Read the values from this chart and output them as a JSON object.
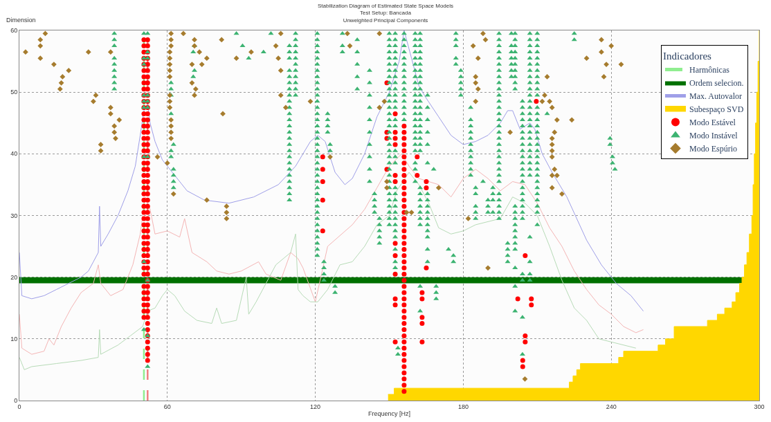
{
  "chart_data": {
    "type": "scatter",
    "title": "Stabilization Diagram of Estimated State Space Models\nTest Setup: Bancada\nUnweighted Principal Components",
    "xlabel": "Frequency [Hz]",
    "ylabel": "Dimension",
    "legend_title": "Indicadores",
    "xlim": [
      0,
      300
    ],
    "xticks": [
      0,
      60,
      120,
      180,
      240,
      300
    ],
    "ylim": [
      0,
      60
    ],
    "yticks": [
      0,
      10,
      20,
      30,
      40,
      50,
      60
    ],
    "grid": true,
    "legend": "top right",
    "ref_lines": [
      {
        "axis": "x",
        "value": 52,
        "label": null,
        "color": "#f08080",
        "line_style": "dashed"
      }
    ],
    "bands": [
      {
        "axis": "y",
        "from": 19,
        "to": 20,
        "label": "Ordem selecion.",
        "color": "#007000"
      }
    ],
    "series": [
      {
        "name": "Harmônicas",
        "type": "line",
        "color": "#90ee90",
        "marker": "none",
        "line_style": "dashed",
        "x": [
          50.5,
          50.5
        ],
        "values": [
          0,
          60
        ]
      },
      {
        "name": "Max. Autovalor",
        "type": "line",
        "color": "#9f9fe8",
        "marker": "none",
        "x": [
          0,
          1,
          5,
          10,
          15,
          20,
          25,
          28,
          30,
          32,
          32.5,
          33,
          36,
          40,
          44,
          47,
          49,
          50.5,
          52,
          53,
          55,
          58,
          62,
          68,
          75,
          85,
          95,
          105,
          112,
          118,
          121,
          124,
          128,
          132,
          135,
          140,
          145,
          150,
          154,
          156,
          158,
          162,
          165,
          170,
          175,
          180,
          185,
          190,
          195,
          198,
          200,
          203,
          207,
          209,
          212,
          216,
          222,
          230,
          236,
          242,
          248,
          253
        ],
        "values": [
          24,
          17,
          16.5,
          17,
          18,
          19,
          20,
          21,
          22.5,
          24,
          31.5,
          25,
          27,
          30,
          34,
          38,
          43,
          47,
          48,
          45,
          42,
          39,
          37,
          34,
          32.5,
          32,
          33,
          35,
          38,
          42,
          43,
          42,
          37,
          35,
          36,
          40,
          46,
          50,
          55,
          60,
          57,
          51,
          49,
          46,
          43,
          41.5,
          42,
          43,
          45,
          47,
          47,
          44,
          45,
          44,
          40,
          37,
          33,
          26,
          22,
          19,
          17,
          14.5
        ]
      },
      {
        "name": "Subespaço SVD",
        "type": "area",
        "color": "#ffd700",
        "x": [
          149.5,
          152,
          152,
          223,
          223,
          224.5,
          224.5,
          226,
          226,
          227.5,
          227.5,
          243,
          243,
          245,
          245,
          259,
          259,
          262,
          262,
          265.5,
          265.5,
          279,
          279,
          283,
          283,
          286,
          286,
          289,
          289,
          290.5,
          290.5,
          292,
          292,
          293,
          293,
          294,
          294,
          295,
          295,
          296,
          296,
          297,
          297,
          297.5,
          297.5,
          298,
          298,
          298.5,
          298.5,
          299,
          299,
          299.5,
          299.5,
          300,
          300
        ],
        "values": [
          1,
          1,
          2,
          2,
          3,
          3,
          4,
          4,
          5,
          5,
          6,
          6,
          7,
          7,
          8,
          8,
          9,
          9,
          10,
          10,
          12,
          12,
          13,
          13,
          14,
          14,
          15,
          15,
          16,
          16,
          17.5,
          17.5,
          19,
          19,
          20,
          20,
          22,
          22,
          24,
          24,
          27,
          27,
          30,
          30,
          35,
          35,
          40,
          40,
          45,
          45,
          50,
          50,
          55,
          55,
          60
        ]
      },
      {
        "name": "Modo Estável",
        "type": "scatter",
        "color": "#ff0000",
        "marker": "circle",
        "x": [
          50.5,
          50.5,
          50.5,
          50.5,
          50.5,
          50.5,
          50.5,
          50.5,
          50.5,
          50.5,
          50.5,
          50.5,
          50.5,
          50.5,
          50.5,
          50.5,
          50.5,
          50.5,
          50.5,
          50.5,
          50.5,
          50.5,
          50.5,
          50.5,
          50.5,
          50.5,
          50.5,
          50.5,
          50.5,
          50.5,
          50.5,
          50.5,
          50.5,
          50.5,
          50.5,
          50.5,
          50.5,
          50.5,
          50.5,
          50.5,
          50.5,
          50.5,
          50.5,
          50.5,
          50.5,
          52,
          52,
          52,
          52,
          52,
          52,
          52,
          52,
          52,
          52,
          52,
          52,
          52,
          52,
          52,
          52,
          52,
          52,
          52,
          52,
          52,
          52,
          52,
          52,
          52,
          52,
          52,
          52,
          52,
          52,
          52,
          52,
          52,
          52,
          52,
          52,
          52,
          52,
          52,
          52,
          52,
          52,
          52,
          52,
          52,
          52,
          52,
          52,
          52,
          52,
          52,
          52,
          52,
          156,
          156,
          156,
          156,
          156,
          156,
          156,
          156,
          156,
          156,
          156,
          156,
          156,
          156,
          156,
          156,
          156,
          156,
          156,
          156,
          156,
          156,
          156,
          156,
          156,
          156,
          156,
          156,
          156,
          156,
          156,
          156,
          156,
          156,
          156,
          156,
          156,
          156,
          156,
          156,
          156,
          156,
          156,
          156,
          152.4,
          152.4,
          152.4,
          152.4,
          152.4,
          152.4,
          152.4,
          152.4,
          152.4,
          152.4,
          152.4,
          152.4,
          149,
          149,
          149,
          149,
          123,
          123,
          123,
          123,
          123,
          161.3,
          161.3,
          165,
          165,
          165,
          163.3,
          163.3,
          163.3,
          163.3,
          163.3,
          209.6,
          205.1,
          205.1,
          205.1,
          202.1,
          207.6,
          207.6,
          204.1,
          204.1
        ],
        "values": [
          13.5,
          14.5,
          15.5,
          16.5,
          17.5,
          18.5,
          20.5,
          21.5,
          22.5,
          23.5,
          24.5,
          25.5,
          26.5,
          27.5,
          28.5,
          29.5,
          30.5,
          31.5,
          32.5,
          33.5,
          34.5,
          35.5,
          36.5,
          37.5,
          38.5,
          39.5,
          40.5,
          41.5,
          42.5,
          43.5,
          44.5,
          45.5,
          46.5,
          47.5,
          48.5,
          49.5,
          50.5,
          51.5,
          52.5,
          53.5,
          54.5,
          55.5,
          56.5,
          57.5,
          58.5,
          6.5,
          7.5,
          8.5,
          9.5,
          10.5,
          11.5,
          12.5,
          13.5,
          14.5,
          15.5,
          16.5,
          17.5,
          18.5,
          19.5,
          20.5,
          21.5,
          22.5,
          23.5,
          24.5,
          25.5,
          26.5,
          27.5,
          28.5,
          29.5,
          30.5,
          31.5,
          32.5,
          33.5,
          34.5,
          35.5,
          36.5,
          37.5,
          38.5,
          39.5,
          40.5,
          41.5,
          42.5,
          43.5,
          44.5,
          45.5,
          46.5,
          47.5,
          48.5,
          49.5,
          50.5,
          51.5,
          52.5,
          53.5,
          54.5,
          55.5,
          56.5,
          57.5,
          58.5,
          1.5,
          2.5,
          3.5,
          4.5,
          5.5,
          6.5,
          7.5,
          8.5,
          9.5,
          10.5,
          11.5,
          12.5,
          13.5,
          14.5,
          15.5,
          16.5,
          17.5,
          18.5,
          19.5,
          20.5,
          21.5,
          22.5,
          23.5,
          24.5,
          25.5,
          26.5,
          27.5,
          28.5,
          29.5,
          30.5,
          31.5,
          32.5,
          33.5,
          34.5,
          35.5,
          36.5,
          37.5,
          38.5,
          39.5,
          40.5,
          41.5,
          42.5,
          43.5,
          44.5,
          46.5,
          43.5,
          42.5,
          41.5,
          36.5,
          35.5,
          25.5,
          23.5,
          20.5,
          16.5,
          15.5,
          9.5,
          51.5,
          43.5,
          42.5,
          37.5,
          39.5,
          37.5,
          35.5,
          32.5,
          27.5,
          39.5,
          36.5,
          35.5,
          34.5,
          21.5,
          17.5,
          16.5,
          13.5,
          12.5,
          9.5,
          48.5,
          23.5,
          10.5,
          9.5,
          16.5,
          16.5,
          15.5,
          6.5,
          5.5
        ]
      },
      {
        "name": "Modo Instável",
        "type": "scatter",
        "color": "#3cb371",
        "marker": "triangle",
        "x": [
          38.5,
          38.5,
          38.5,
          38.5,
          38.5,
          38.5,
          38.5,
          38.5,
          38.5,
          50.5,
          50.5,
          50.5,
          50.5,
          50.5,
          50.5,
          50.5,
          50.5,
          50.5,
          52,
          52,
          52,
          52,
          52,
          52,
          52,
          52,
          52,
          52,
          61.5,
          61.5,
          61.5,
          61.5,
          61.5,
          61.5,
          62.5,
          62.5,
          62.5,
          62.5,
          62.5,
          70.5,
          70.5,
          71,
          71,
          88,
          90.5,
          93,
          99,
          102,
          109.5,
          109.5,
          109.5,
          109.5,
          109.5,
          109.5,
          109.5,
          109.5,
          109.5,
          109.5,
          109.5,
          109.5,
          109.5,
          109.5,
          109.5,
          109.5,
          109.5,
          109.5,
          109.5,
          109.5,
          109.5,
          109.5,
          109.5,
          109.5,
          109.5,
          112,
          112,
          112,
          112,
          112,
          112,
          112,
          112,
          112,
          112,
          112,
          120.8,
          120.8,
          120.8,
          120.8,
          120.8,
          120.8,
          120.8,
          120.8,
          120.8,
          120.8,
          120.8,
          120.8,
          120.8,
          120.8,
          120.8,
          120.8,
          120.8,
          120.8,
          120.8,
          120.8,
          120.8,
          120.8,
          120.8,
          120.8,
          120.8,
          120.8,
          120.8,
          120.8,
          120.8,
          120.8,
          120.8,
          120.8,
          120.8,
          120.8,
          120.8,
          120.8,
          120.8,
          123.5,
          123.5,
          123.5,
          123.5,
          125,
          125,
          125,
          125,
          126,
          126,
          128,
          128,
          131,
          131,
          131,
          137,
          137,
          137,
          137,
          137,
          142,
          142,
          142,
          142,
          142,
          142,
          142,
          142,
          142,
          142,
          144,
          144,
          144,
          144,
          146,
          146,
          146,
          146,
          146,
          150,
          150,
          150,
          150,
          150,
          150,
          150,
          150,
          150,
          150,
          150,
          150,
          150,
          150,
          150,
          150,
          150,
          150,
          150,
          150,
          150,
          150,
          150,
          150,
          150,
          150,
          150,
          150,
          150,
          150,
          150,
          150,
          152.4,
          152.4,
          152.4,
          152.4,
          152.4,
          152.4,
          152.4,
          152.4,
          152.4,
          152.4,
          152.4,
          152.4,
          152.4,
          152.4,
          152.4,
          152.4,
          152.4,
          152.4,
          152.4,
          152.4,
          152.4,
          152.4,
          152.4,
          152.4,
          152.4,
          152.4,
          152.4,
          152.4,
          152.4,
          152.4,
          153.5,
          153.5,
          156,
          156,
          156,
          156,
          156,
          156,
          156,
          156,
          156,
          156,
          156,
          156,
          156,
          156,
          156,
          160.5,
          160.5,
          160.5,
          160.5,
          160.5,
          160.5,
          160.5,
          160.5,
          160.5,
          160.5,
          160.5,
          160.5,
          160.5,
          160.5,
          160.5,
          160.5,
          160.5,
          160.5,
          160.5,
          160.5,
          160.5,
          160.5,
          160.5,
          162.5,
          162.5,
          162.5,
          162.5,
          162.5,
          162.5,
          162.5,
          162.5,
          162.5,
          162.5,
          162.5,
          162.5,
          162.5,
          162.5,
          162.5,
          162.5,
          162.5,
          162.5,
          162.5,
          162.5,
          162.5,
          162.5,
          162.5,
          162.5,
          162.5,
          162.5,
          162.5,
          162.5,
          162.5,
          165.5,
          165.5,
          165.5,
          165.5,
          165.5,
          165.5,
          165.5,
          165.5,
          165.5,
          165.5,
          165.5,
          165.5,
          165.5,
          165.5,
          165.5,
          165.5,
          169,
          169,
          169,
          168,
          174,
          176,
          176,
          177,
          177,
          177,
          177,
          177,
          179,
          179,
          179,
          179,
          179,
          183,
          183,
          183,
          183,
          183,
          183,
          183,
          183,
          183,
          183,
          183,
          185,
          185,
          185,
          185,
          185,
          188,
          190,
          190,
          190,
          192,
          192,
          192,
          192,
          194.5,
          194.5,
          194.5,
          194.5,
          194.5,
          194.5,
          194.5,
          194.5,
          194.5,
          194.5,
          194.5,
          194.5,
          194.5,
          194.5,
          194.5,
          194.5,
          194.5,
          194.5,
          194.5,
          194.5,
          194.5,
          194.5,
          194.5,
          194.5,
          194.5,
          194.5,
          194.5,
          194.5,
          194.5,
          194.5,
          198,
          198,
          198,
          198,
          199.5,
          199.5,
          199.5,
          199.5,
          199.5,
          199.5,
          199.5,
          201,
          201,
          201,
          201,
          201,
          201,
          201,
          201,
          201,
          201,
          201,
          201,
          201,
          201,
          201,
          201,
          201,
          201,
          201,
          201,
          201,
          204,
          204,
          204,
          204,
          204,
          204,
          204,
          204,
          204,
          204,
          204,
          204,
          204,
          204,
          204,
          204,
          204,
          204,
          204,
          204,
          204,
          204,
          204,
          204,
          207,
          207,
          207,
          207,
          207,
          207,
          207,
          207,
          207,
          207,
          207,
          207,
          207,
          207,
          207,
          207,
          207,
          207,
          207,
          207,
          207,
          207,
          207,
          207,
          207,
          207,
          207,
          207,
          210,
          210,
          210,
          210,
          210,
          210,
          210,
          210,
          210,
          210,
          210,
          210,
          210,
          210,
          210,
          210,
          210,
          210,
          210,
          210,
          210,
          210,
          210,
          210,
          210,
          210,
          210,
          210,
          210,
          210,
          214,
          225,
          225,
          239.5,
          239.5,
          240.5,
          240.5,
          241.5
        ],
        "values": [
          59.5,
          58.5,
          57.5,
          55.5,
          54.5,
          53.5,
          52.5,
          51.5,
          50.5,
          59.5,
          55.5,
          54.5,
          49.5,
          48.5,
          47.5,
          39.5,
          22.5,
          11.5,
          59.5,
          56.5,
          55.5,
          49.5,
          48.5,
          47.5,
          39.5,
          19.5,
          10.5,
          5.5,
          51.5,
          50.5,
          49.5,
          46.5,
          40.5,
          39.5,
          41.5,
          37.5,
          36.5,
          35.5,
          34.5,
          56.5,
          52.5,
          57.5,
          53.5,
          59.5,
          57.5,
          55.5,
          56.5,
          59.5,
          57.5,
          56.5,
          55.5,
          53.5,
          52.5,
          51.5,
          50.5,
          49.5,
          48.5,
          47.5,
          46.5,
          45.5,
          44.5,
          43.5,
          42.5,
          41.5,
          40.5,
          39.5,
          38.5,
          37.5,
          36.5,
          35.5,
          34.5,
          33.5,
          32.5,
          59.5,
          58.5,
          57.5,
          56.5,
          55.5,
          54.5,
          53.5,
          52.5,
          51.5,
          50.5,
          49.5,
          59.5,
          58.5,
          57.5,
          56.5,
          55.5,
          54.5,
          53.5,
          52.5,
          51.5,
          50.5,
          49.5,
          48.5,
          47.5,
          46.5,
          45.5,
          44.5,
          43.5,
          42.5,
          41.5,
          40.5,
          39.5,
          38.5,
          37.5,
          36.5,
          35.5,
          34.5,
          33.5,
          32.5,
          31.5,
          30.5,
          29.5,
          28.5,
          27.5,
          26.5,
          25.5,
          24.5,
          23.5,
          22.5,
          21.5,
          20.5,
          19.5,
          46.5,
          45.5,
          44.5,
          43.5,
          41.5,
          40.5,
          18.5,
          17.5,
          59.5,
          57.5,
          56.5,
          58.5,
          56.5,
          54.5,
          52.5,
          50.5,
          53.5,
          51.5,
          49.5,
          47.5,
          45.5,
          43.5,
          41.5,
          39.5,
          37.5,
          35.5,
          33.5,
          32.5,
          31.5,
          30.5,
          29.5,
          28.5,
          27.5,
          26.5,
          25.5,
          59.5,
          58.5,
          57.5,
          56.5,
          55.5,
          54.5,
          53.5,
          52.5,
          51.5,
          50.5,
          49.5,
          48.5,
          47.5,
          46.5,
          45.5,
          44.5,
          43.5,
          42.5,
          41.5,
          40.5,
          39.5,
          38.5,
          37.5,
          36.5,
          35.5,
          34.5,
          33.5,
          32.5,
          31.5,
          30.5,
          29.5,
          28.5,
          59.5,
          58.5,
          57.5,
          56.5,
          55.5,
          54.5,
          53.5,
          52.5,
          51.5,
          50.5,
          49.5,
          48.5,
          47.5,
          45.5,
          44.5,
          40.5,
          39.5,
          38.5,
          34.5,
          33.5,
          32.5,
          31.5,
          30.5,
          29.5,
          28.5,
          27.5,
          26.5,
          24.5,
          22.5,
          21.5,
          8.5,
          7.5,
          59.5,
          58.5,
          57.5,
          56.5,
          55.5,
          54.5,
          53.5,
          52.5,
          51.5,
          50.5,
          49.5,
          48.5,
          47.5,
          46.5,
          45.5,
          59.5,
          58.5,
          57.5,
          56.5,
          55.5,
          54.5,
          53.5,
          52.5,
          51.5,
          50.5,
          49.5,
          48.5,
          47.5,
          46.5,
          45.5,
          44.5,
          43.5,
          42.5,
          41.5,
          40.5,
          38.5,
          37.5,
          35.5,
          59.5,
          58.5,
          57.5,
          56.5,
          55.5,
          54.5,
          53.5,
          52.5,
          51.5,
          50.5,
          49.5,
          48.5,
          47.5,
          46.5,
          45.5,
          44.5,
          43.5,
          42.5,
          41.5,
          40.5,
          34.5,
          33.5,
          32.5,
          31.5,
          30.5,
          29.5,
          28.5,
          18.5,
          14.5,
          49.5,
          47.5,
          45.5,
          43.5,
          41.5,
          38.5,
          33.5,
          32.5,
          31.5,
          30.5,
          29.5,
          28.5,
          27.5,
          26.5,
          24.5,
          22.5,
          18.5,
          17.5,
          16.5,
          37.5,
          24.5,
          23.5,
          22.5,
          59.5,
          58.5,
          57.5,
          55.5,
          54.5,
          53.5,
          52.5,
          51.5,
          50.5,
          49.5,
          47.5,
          45.5,
          44.5,
          43.5,
          42.5,
          41.5,
          40.5,
          39.5,
          38.5,
          37.5,
          36.5,
          34.5,
          33.5,
          31.5,
          30.5,
          29.5,
          35.5,
          32.5,
          31.5,
          30.5,
          34.5,
          33.5,
          32.5,
          30.5,
          59.5,
          58.5,
          57.5,
          56.5,
          55.5,
          54.5,
          53.5,
          52.5,
          51.5,
          50.5,
          49.5,
          48.5,
          47.5,
          46.5,
          45.5,
          44.5,
          43.5,
          42.5,
          41.5,
          40.5,
          39.5,
          38.5,
          37.5,
          36.5,
          35.5,
          33.5,
          32.5,
          31.5,
          30.5,
          29.5,
          25.5,
          24.5,
          23.5,
          22.5,
          59.5,
          57.5,
          56.5,
          55.5,
          54.5,
          53.5,
          52.5,
          59.5,
          58.5,
          57.5,
          56.5,
          55.5,
          54.5,
          53.5,
          52.5,
          51.5,
          50.5,
          31.5,
          30.5,
          29.5,
          28.5,
          27.5,
          26.5,
          25.5,
          24.5,
          21.5,
          18.5,
          14.5,
          48.5,
          47.5,
          46.5,
          45.5,
          44.5,
          43.5,
          42.5,
          41.5,
          40.5,
          39.5,
          38.5,
          37.5,
          36.5,
          35.5,
          34.5,
          33.5,
          32.5,
          31.5,
          30.5,
          29.5,
          20.5,
          19.5,
          13.5,
          7.5,
          59.5,
          58.5,
          57.5,
          56.5,
          55.5,
          54.5,
          53.5,
          52.5,
          51.5,
          50.5,
          49.5,
          48.5,
          47.5,
          46.5,
          45.5,
          44.5,
          43.5,
          42.5,
          41.5,
          40.5,
          39.5,
          38.5,
          37.5,
          36.5,
          26.5,
          22.5,
          20.5,
          19.5,
          59.5,
          58.5,
          57.5,
          56.5,
          55.5,
          54.5,
          53.5,
          52.5,
          51.5,
          50.5,
          49.5,
          47.5,
          46.5,
          45.5,
          44.5,
          43.5,
          42.5,
          41.5,
          40.5,
          39.5,
          38.5,
          37.5,
          36.5,
          35.5,
          34.5,
          33.5,
          32.5,
          31.5,
          30.5,
          28.5,
          46.5,
          59.5,
          58.5,
          42.5,
          41.5,
          39.5,
          38.5,
          37.5
        ]
      },
      {
        "name": "Modo Espúrio",
        "type": "scatter",
        "color": "#a67c2e",
        "marker": "diamond",
        "x": [
          2.5,
          8.5,
          8.5,
          8.5,
          10.5,
          14,
          17.5,
          17,
          16.5,
          20,
          28,
          31,
          30,
          33,
          33,
          37,
          37,
          37,
          38.5,
          38.5,
          39,
          40.5,
          56,
          60,
          61.5,
          61.5,
          61.5,
          61,
          61,
          61,
          61,
          61,
          61,
          61,
          61,
          61.5,
          61.5,
          61.5,
          61.5,
          62.5,
          66.5,
          71,
          71,
          70,
          70,
          71.5,
          71,
          73,
          74,
          76,
          76,
          82,
          82.5,
          84,
          84,
          84,
          88,
          94,
          106,
          104,
          105,
          106,
          106,
          108,
          118,
          126,
          133,
          134,
          146,
          148,
          146,
          149,
          149,
          157,
          170,
          182,
          184,
          186,
          185,
          185,
          185,
          186,
          188,
          189,
          199,
          212,
          213,
          214,
          215,
          216,
          218,
          217,
          216,
          216,
          216,
          216,
          217,
          216,
          216,
          218,
          220,
          224,
          230,
          236,
          236,
          237,
          238,
          240,
          244,
          205,
          190,
          159
        ],
        "values": [
          56.5,
          58.5,
          57.5,
          55.5,
          59.5,
          54.5,
          52.5,
          51.5,
          50.5,
          53.5,
          56.5,
          49.5,
          48.5,
          41.5,
          40.5,
          56.5,
          47.5,
          46.5,
          44.5,
          43.5,
          42.5,
          45.5,
          39.5,
          38.5,
          59.5,
          58.5,
          57.5,
          56.5,
          55.5,
          54.5,
          53.5,
          52.5,
          49.5,
          48.5,
          47.5,
          45.5,
          44.5,
          43.5,
          42.5,
          33.5,
          59.5,
          58.5,
          57.5,
          54.5,
          51.5,
          50.5,
          49.5,
          56.5,
          54.5,
          55.5,
          32.5,
          58.5,
          46.5,
          31.5,
          30.5,
          29.5,
          55.5,
          56.5,
          59.5,
          57.5,
          55.5,
          53.5,
          49.5,
          47.5,
          48.5,
          39.5,
          59.5,
          57.5,
          59.5,
          48.5,
          47.5,
          35.5,
          34.5,
          30.5,
          34.5,
          29.5,
          57.5,
          55.5,
          52.5,
          51.5,
          48.5,
          50.5,
          59.5,
          58.5,
          43.5,
          48.5,
          49.5,
          52.5,
          48.5,
          47.5,
          45.5,
          43.5,
          42.5,
          41.5,
          40.5,
          39.5,
          37.5,
          36.5,
          34.5,
          36.5,
          33.5,
          45.5,
          55.5,
          58.5,
          56.5,
          52.5,
          54.5,
          57.5,
          54.5,
          3.5,
          21.5,
          30.5
        ]
      },
      {
        "type": "line",
        "color": "#f4b5b5",
        "marker": "none",
        "x": [
          0,
          1,
          5,
          10,
          12,
          14,
          17,
          21,
          25,
          30,
          32,
          33,
          37,
          42,
          46,
          49,
          51,
          53,
          55,
          60,
          65,
          67,
          70,
          76,
          80,
          85,
          90,
          97,
          100,
          106,
          110,
          113,
          115,
          120,
          125,
          135,
          140,
          145,
          150,
          155,
          158,
          162,
          170,
          175,
          180,
          185,
          190,
          195,
          200,
          205,
          210,
          215,
          220,
          225,
          230,
          235,
          240,
          245,
          250,
          253
        ],
        "values": [
          14,
          8.5,
          7.5,
          8,
          10,
          9,
          12,
          15,
          17.5,
          19,
          22,
          19,
          17,
          18,
          22,
          27,
          33,
          31,
          27,
          27.5,
          26.5,
          29.5,
          24,
          22.5,
          21,
          20.5,
          21,
          22.5,
          20.5,
          19.5,
          24,
          23,
          21.5,
          16,
          25,
          28.5,
          31,
          34.5,
          38,
          40,
          38,
          36,
          35,
          33,
          36,
          37.5,
          36,
          34,
          35.5,
          35,
          32,
          28,
          25,
          21,
          18,
          15.5,
          14,
          12,
          11,
          11.5
        ]
      },
      {
        "type": "line",
        "color": "#b7dbb7",
        "marker": "none",
        "x": [
          0,
          2,
          5,
          15,
          25,
          32,
          32.5,
          33,
          40,
          45,
          50,
          52,
          55,
          58,
          60,
          63,
          67,
          72,
          78,
          80,
          82,
          88,
          92,
          93,
          96,
          100,
          104,
          110,
          112,
          113,
          115,
          118,
          121,
          125,
          130,
          135,
          140,
          145,
          150,
          153,
          158,
          162,
          166,
          170,
          175,
          180,
          185,
          190,
          195,
          200,
          205,
          210,
          215,
          220,
          225,
          230,
          235,
          240,
          245,
          250
        ],
        "values": [
          7,
          5,
          5.5,
          6,
          6.5,
          7,
          11.5,
          7.5,
          9,
          10.5,
          12,
          14.5,
          15,
          17,
          18,
          17,
          14.5,
          13,
          12.5,
          15,
          12.5,
          13,
          20,
          14,
          16,
          19,
          22,
          24,
          27,
          18,
          17,
          16,
          16,
          18,
          22,
          22.5,
          25,
          28.5,
          30,
          34,
          37,
          35,
          32,
          28,
          27,
          27.5,
          28.5,
          29,
          29.5,
          33,
          32,
          30,
          25,
          19.5,
          15,
          13,
          10,
          9.5,
          9,
          8.5
        ]
      }
    ]
  }
}
